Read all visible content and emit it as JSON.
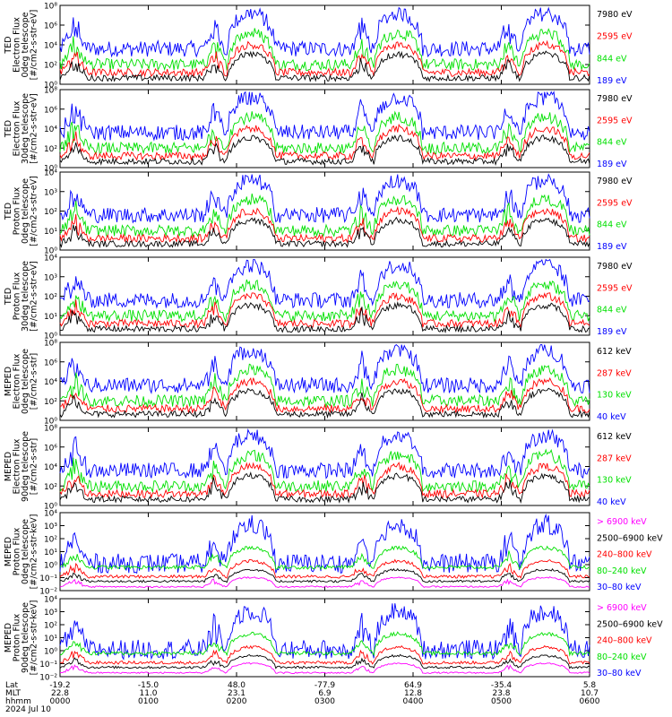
{
  "colors": {
    "blue": "#0000ff",
    "red": "#ff0000",
    "green": "#00e000",
    "black": "#000000",
    "magenta": "#ff00ff"
  },
  "panels": [
    {
      "ylabel": [
        "TED",
        "Electron Flux",
        "0deg telescope",
        "[#/cm2-s-str-eV]"
      ],
      "yticks": [
        "10⁸",
        "10⁶",
        "10⁴",
        "10²",
        "10⁰"
      ],
      "legend": [
        {
          "text": "7980 eV",
          "color": "black"
        },
        {
          "text": "2595 eV",
          "color": "red"
        },
        {
          "text": "844 eV",
          "color": "green"
        },
        {
          "text": "189 eV",
          "color": "blue"
        }
      ]
    },
    {
      "ylabel": [
        "TED",
        "Electron Flux",
        "30deg telescope",
        "[#/cm2-s-str-eV]"
      ],
      "yticks": [
        "10⁸",
        "10⁶",
        "10⁴",
        "10²",
        "10⁰"
      ],
      "legend": [
        {
          "text": "7980 eV",
          "color": "black"
        },
        {
          "text": "2595 eV",
          "color": "red"
        },
        {
          "text": "844 eV",
          "color": "green"
        },
        {
          "text": "189 eV",
          "color": "blue"
        }
      ]
    },
    {
      "ylabel": [
        "TED",
        "Proton Flux",
        "0deg telescope",
        "[#/cm2-s-str-eV]"
      ],
      "yticks": [
        "10⁴",
        "10³",
        "10²",
        "10¹",
        "10⁰"
      ],
      "legend": [
        {
          "text": "7980 eV",
          "color": "black"
        },
        {
          "text": "2595 eV",
          "color": "red"
        },
        {
          "text": "844 eV",
          "color": "green"
        },
        {
          "text": "189 eV",
          "color": "blue"
        }
      ]
    },
    {
      "ylabel": [
        "TED",
        "Proton Flux",
        "30deg telescope",
        "[#/cm2-s-str-eV]"
      ],
      "yticks": [
        "10⁴",
        "10³",
        "10²",
        "10¹",
        "10⁰"
      ],
      "legend": [
        {
          "text": "7980 eV",
          "color": "black"
        },
        {
          "text": "2595 eV",
          "color": "red"
        },
        {
          "text": "844 eV",
          "color": "green"
        },
        {
          "text": "189 eV",
          "color": "blue"
        }
      ]
    },
    {
      "ylabel": [
        "MEPED",
        "Electron Flux",
        "0deg telescope",
        "[#/cm2-s-str]"
      ],
      "yticks": [
        "10⁸",
        "10⁶",
        "10⁴",
        "10²",
        "10⁰"
      ],
      "legend": [
        {
          "text": "612 keV",
          "color": "black"
        },
        {
          "text": "287 keV",
          "color": "red"
        },
        {
          "text": "130 keV",
          "color": "green"
        },
        {
          "text": "40 keV",
          "color": "blue"
        }
      ]
    },
    {
      "ylabel": [
        "MEPED",
        "Electron Flux",
        "90deg telescope",
        "[#/cm2-s-str]"
      ],
      "yticks": [
        "10⁸",
        "10⁶",
        "10⁴",
        "10²",
        "10⁰"
      ],
      "legend": [
        {
          "text": "612 keV",
          "color": "black"
        },
        {
          "text": "287 keV",
          "color": "red"
        },
        {
          "text": "130 keV",
          "color": "green"
        },
        {
          "text": "40 keV",
          "color": "blue"
        }
      ]
    },
    {
      "ylabel": [
        "MEPED",
        "Proton Flux",
        "0deg telescope",
        "[#/cm2-s-str-keV]"
      ],
      "yticks": [
        "10⁴",
        "10³",
        "10²",
        "10¹",
        "10⁰",
        "10⁻¹",
        "10⁻²"
      ],
      "legend": [
        {
          "text": "> 6900 keV",
          "color": "magenta"
        },
        {
          "text": "2500–6900 keV",
          "color": "black"
        },
        {
          "text": "240–800 keV",
          "color": "red"
        },
        {
          "text": "80–240 keV",
          "color": "green"
        },
        {
          "text": "30–80 keV",
          "color": "blue"
        }
      ]
    },
    {
      "ylabel": [
        "MEPED",
        "Proton Flux",
        "90deg telescope",
        "[#/cm2-s-str-keV]"
      ],
      "yticks": [
        "10⁴",
        "10³",
        "10²",
        "10¹",
        "10⁰",
        "10⁻¹",
        "10⁻²"
      ],
      "legend": [
        {
          "text": "> 6900 keV",
          "color": "magenta"
        },
        {
          "text": "2500–6900 keV",
          "color": "black"
        },
        {
          "text": "240–800 keV",
          "color": "red"
        },
        {
          "text": "80–240 keV",
          "color": "green"
        },
        {
          "text": "30–80 keV",
          "color": "blue"
        }
      ]
    }
  ],
  "xaxis": {
    "row_labels": [
      "Lat",
      "MLT",
      "hhmm",
      "2024 Jul 10"
    ],
    "ticks": [
      {
        "lat": "-19.2",
        "mlt": "22.8",
        "time": "0000"
      },
      {
        "lat": "-15.0",
        "mlt": "11.0",
        "time": "0100"
      },
      {
        "lat": "48.0",
        "mlt": "23.1",
        "time": "0200"
      },
      {
        "lat": "-77.9",
        "mlt": "6.9",
        "time": "0300"
      },
      {
        "lat": "64.9",
        "mlt": "12.8",
        "time": "0400"
      },
      {
        "lat": "-35.4",
        "mlt": "23.8",
        "time": "0500"
      },
      {
        "lat": "5.8",
        "mlt": "10.7",
        "time": "0600"
      }
    ]
  },
  "chart_data": {
    "type": "line",
    "title": "",
    "xlabel": "hhmm",
    "x_range": [
      "0000",
      "0600"
    ],
    "date": "2024 Jul 10",
    "yscale": "log",
    "panel_count": 8,
    "note_peaks_hhmm": [
      "0145",
      "0210",
      "0325",
      "0350",
      "0505",
      "0530"
    ]
  }
}
